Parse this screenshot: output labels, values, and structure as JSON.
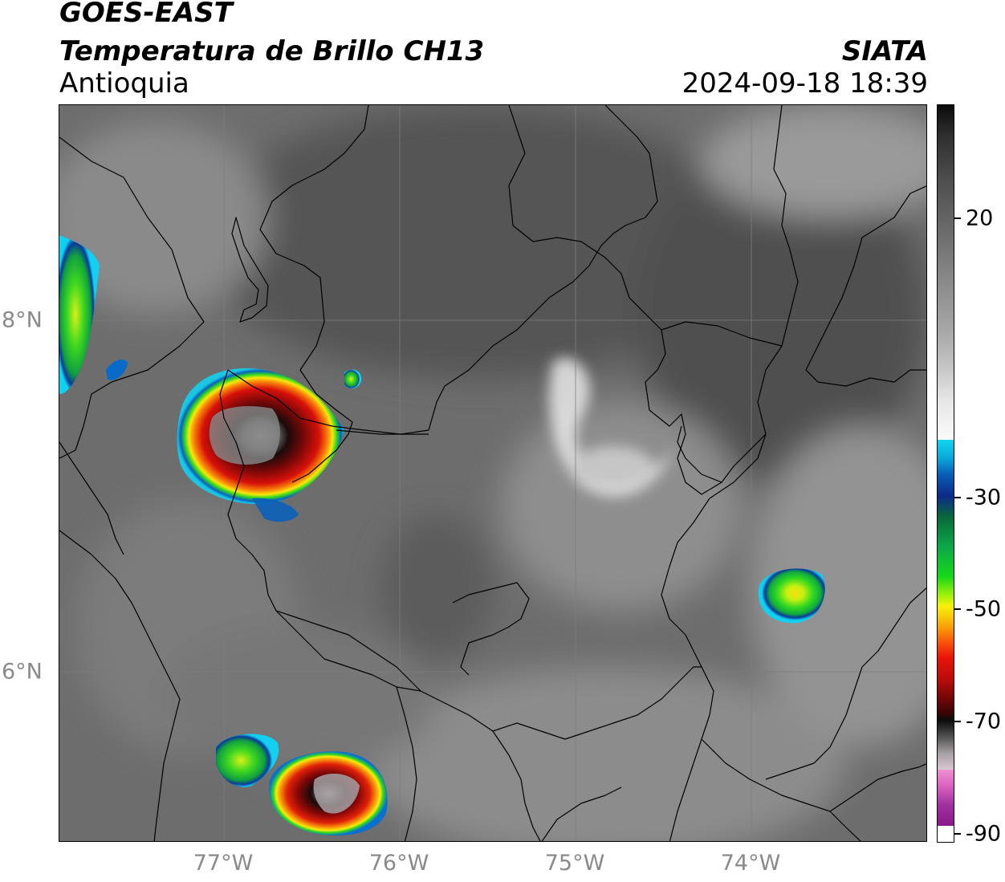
{
  "header": {
    "satellite": "GOES-EAST",
    "product": "Temperatura de Brillo CH13",
    "region": "Antioquia",
    "source": "SIATA",
    "datetime": "2024-09-18 18:39"
  },
  "axes": {
    "lon_labels": [
      "77°W",
      "76°W",
      "75°W",
      "74°W"
    ],
    "lat_labels": [
      "8°N",
      "6°N"
    ]
  },
  "colorbar": {
    "tick_labels": [
      "20",
      "-30",
      "-50",
      "-70",
      "-90"
    ],
    "unit": ""
  },
  "colors": {
    "background_gray": "#6a6a6a",
    "border_line": "#000000",
    "label_gray": "#8a8a8a"
  },
  "icons": {
    "cold_cloud_cell": "storm-cell-icon"
  }
}
